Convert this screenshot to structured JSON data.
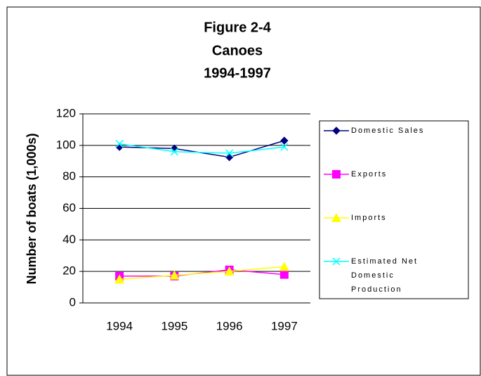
{
  "chart_data": {
    "type": "line",
    "title": [
      "Figure 2-4",
      "Canoes",
      "1994-1997"
    ],
    "y_label": "Number of boats (1,000s)",
    "categories": [
      "1994",
      "1995",
      "1996",
      "1997"
    ],
    "series": [
      {
        "name": "Domestic Sales",
        "color": "#000080",
        "marker": "diamond",
        "values": [
          99,
          98,
          92.5,
          103
        ]
      },
      {
        "name": "Exports",
        "color": "#ff00ff",
        "marker": "square",
        "values": [
          17,
          17,
          21,
          18
        ]
      },
      {
        "name": "Imports",
        "color": "#ffff00",
        "marker": "triangle",
        "values": [
          15,
          17.5,
          20,
          23
        ]
      },
      {
        "name": "Estimated Net Domestic Production",
        "color": "#00ffff",
        "marker": "x",
        "values": [
          101,
          96,
          95,
          99
        ]
      }
    ],
    "ylim": [
      0,
      120
    ],
    "yticks": [
      0,
      20,
      40,
      60,
      80,
      100,
      120
    ],
    "grid": true,
    "legend": "right"
  }
}
